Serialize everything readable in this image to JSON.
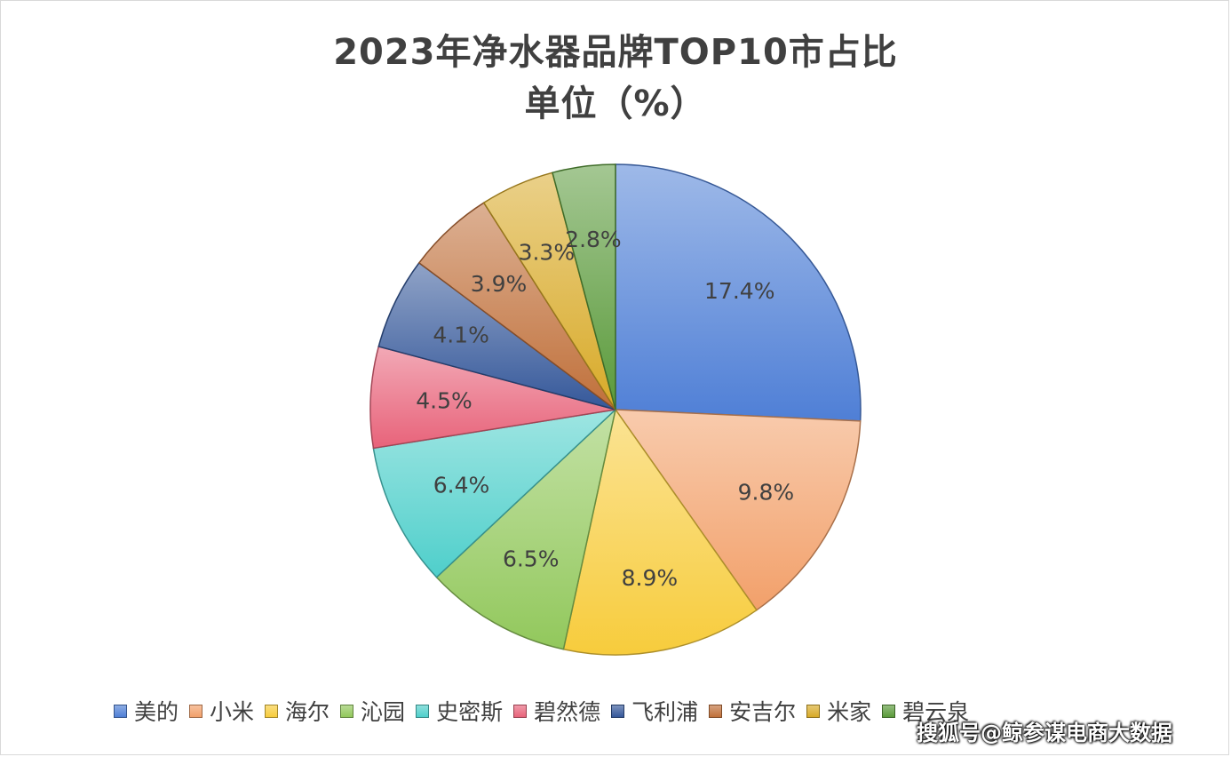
{
  "chart_data": {
    "type": "pie",
    "title": "2023年净水器品牌TOP10市占比",
    "subtitle": "单位（%）",
    "categories": [
      "美的",
      "小米",
      "海尔",
      "沁园",
      "史密斯",
      "碧然德",
      "飞利浦",
      "安吉尔",
      "米家",
      "碧云泉"
    ],
    "values": [
      17.4,
      9.8,
      8.9,
      6.5,
      6.4,
      4.5,
      4.1,
      3.9,
      3.3,
      2.8
    ],
    "labels": [
      "17.4%",
      "9.8%",
      "8.9%",
      "6.5%",
      "6.4%",
      "4.5%",
      "4.1%",
      "3.9%",
      "3.3%",
      "2.8%"
    ],
    "colors": [
      "#4f7fd6",
      "#f2a06a",
      "#f7cc3c",
      "#92c85c",
      "#4fcfcb",
      "#e8637a",
      "#35589a",
      "#c0703a",
      "#d8aa28",
      "#5a9a3a"
    ],
    "legend_position": "bottom",
    "start_angle": "top, clockwise"
  },
  "watermark": "搜狐号@鲸参谋电商大数据"
}
